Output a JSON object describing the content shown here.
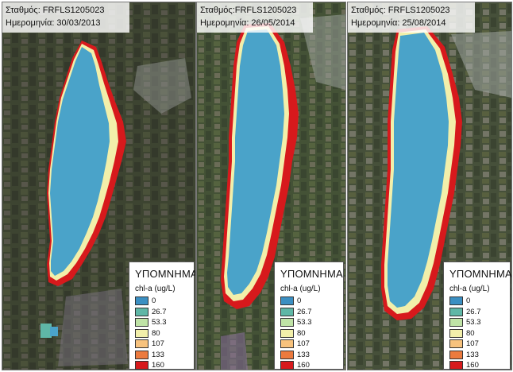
{
  "panels": [
    {
      "station_label": "Σταθμός: FRFLS1205023",
      "date_label": "Ημερομηνία: 30/03/2013"
    },
    {
      "station_label": "Σταθμός:FRFLS1205023",
      "date_label": "Ημερομηνία: 26/05/2014"
    },
    {
      "station_label": "Σταθμός: FRFLS1205023",
      "date_label": "Ημερομηνία: 25/08/2014"
    }
  ],
  "legend": {
    "title": "ΥΠΟΜΝΗΜΑ",
    "subtitle": "chl-a (ug/L)",
    "classes": [
      {
        "label": "0",
        "color": "#3b8fc2"
      },
      {
        "label": "26.7",
        "color": "#5fb7a6"
      },
      {
        "label": "53.3",
        "color": "#bfe3a6"
      },
      {
        "label": "80",
        "color": "#f2efaa"
      },
      {
        "label": "107",
        "color": "#f7c27d"
      },
      {
        "label": "133",
        "color": "#ec7a3e"
      },
      {
        "label": "160",
        "color": "#d7191c"
      }
    ]
  },
  "colors": {
    "land": "#3f4433",
    "lake_water": "#4aa3c9",
    "bloom_red": "#d7191c"
  }
}
